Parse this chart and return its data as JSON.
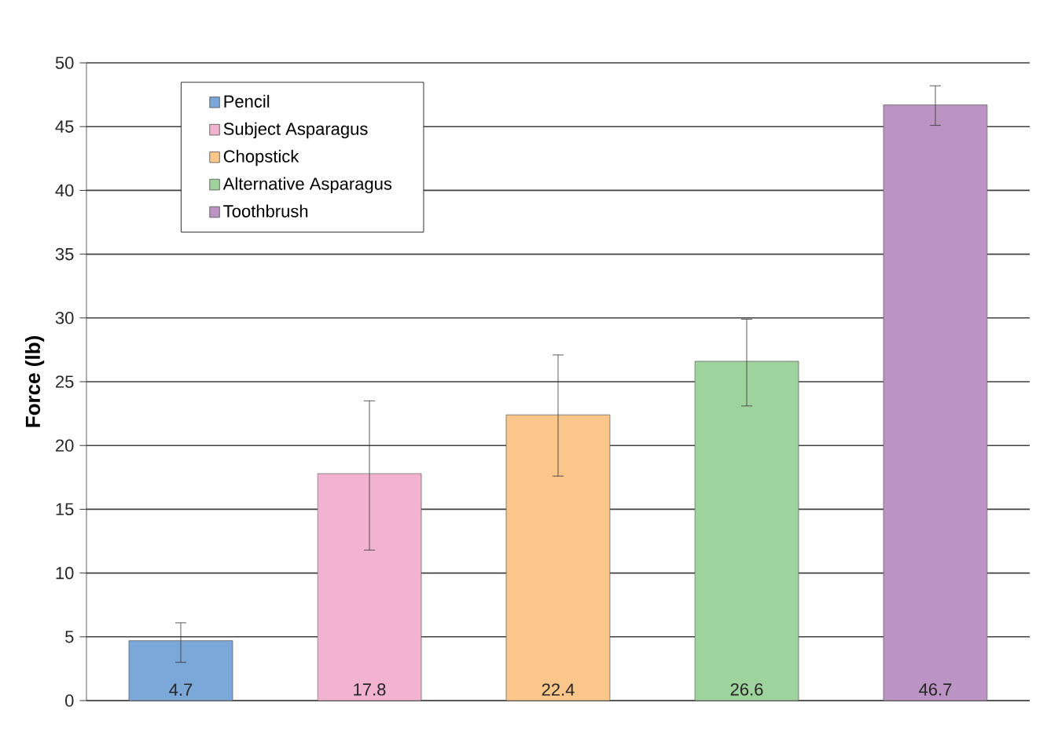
{
  "chart_data": {
    "type": "bar",
    "ylabel": "Force (lb)",
    "categories": [
      null,
      null,
      null,
      null,
      null
    ],
    "series": [
      {
        "name": "Pencil",
        "color": "#7ba7d9",
        "values": [
          4.7,
          null,
          null,
          null,
          null
        ],
        "errors": [
          [
            3.0,
            6.1
          ],
          null,
          null,
          null,
          null
        ]
      },
      {
        "name": "Subject Asparagus",
        "color": "#f2b3d1",
        "values": [
          null,
          17.8,
          null,
          null,
          null
        ],
        "errors": [
          null,
          [
            11.8,
            23.5
          ],
          null,
          null,
          null
        ]
      },
      {
        "name": "Chopstick",
        "color": "#fbc68a",
        "values": [
          null,
          null,
          22.4,
          null,
          null
        ],
        "errors": [
          null,
          null,
          [
            17.6,
            27.1
          ],
          null,
          null
        ]
      },
      {
        "name": "Alternative Asparagus",
        "color": "#9fd39d",
        "values": [
          null,
          null,
          null,
          26.6,
          null
        ],
        "errors": [
          null,
          null,
          null,
          [
            23.1,
            29.9
          ],
          null
        ]
      },
      {
        "name": "Toothbrush",
        "color": "#bb94c3",
        "values": [
          null,
          null,
          null,
          null,
          46.7
        ],
        "errors": [
          null,
          null,
          null,
          null,
          [
            45.1,
            48.2
          ]
        ]
      }
    ],
    "ylim": [
      0,
      50
    ],
    "yticks": [
      0,
      5,
      10,
      15,
      20,
      25,
      30,
      35,
      40,
      45,
      50
    ],
    "grid": "y",
    "legend": "top left",
    "data_labels": true
  }
}
